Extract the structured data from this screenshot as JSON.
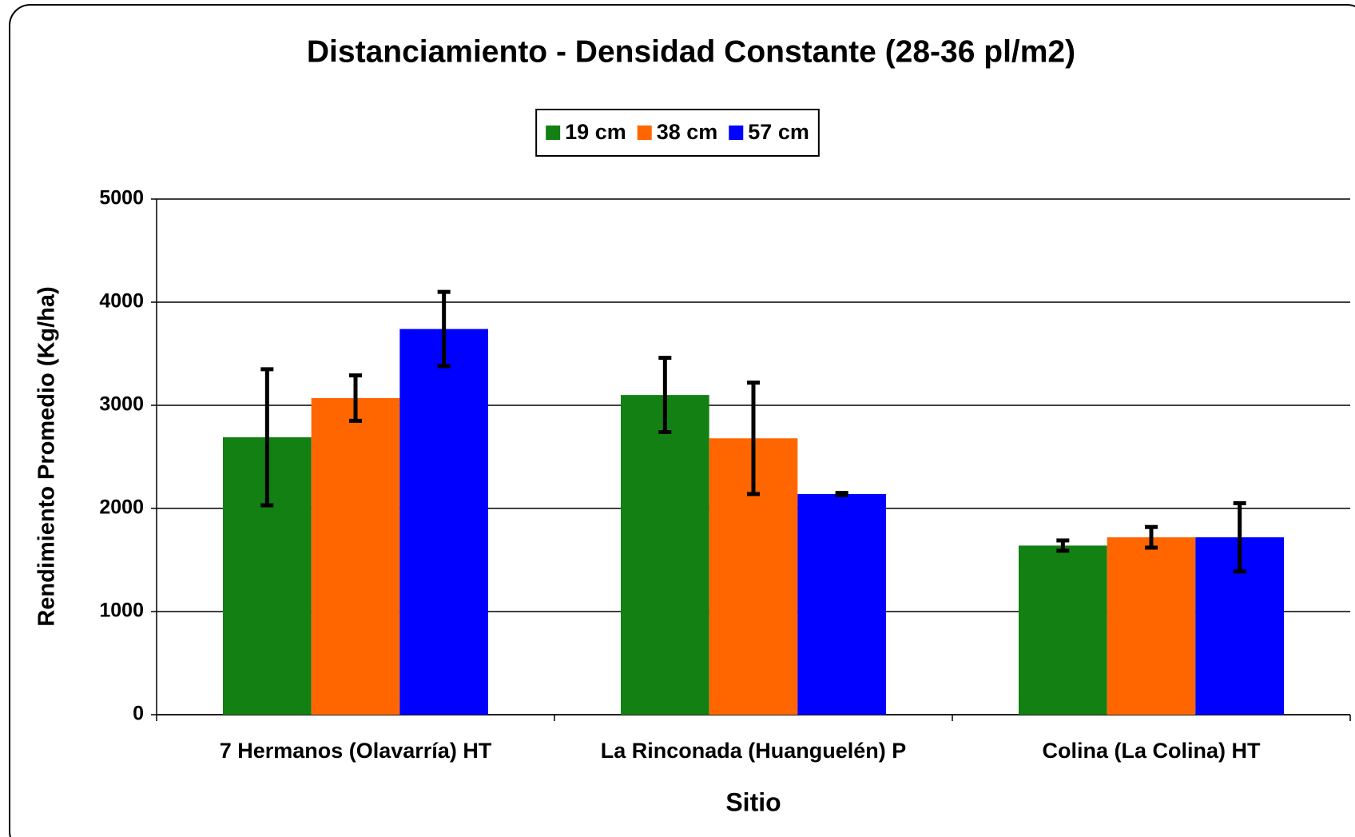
{
  "chart_data": {
    "type": "bar",
    "title": "Distanciamiento - Densidad Constante (28-36 pl/m2)",
    "x_label": "Sitio",
    "y_label": "Rendimiento Promedio (Kg/ha)",
    "categories": [
      "7 Hermanos (Olavarría) HT",
      "La Rinconada (Huanguelén) P",
      "Colina (La Colina) HT"
    ],
    "series": [
      {
        "name": "19 cm",
        "color": "#138013",
        "values": [
          2690,
          3100,
          1640
        ],
        "errors": [
          660,
          360,
          50
        ]
      },
      {
        "name": "38 cm",
        "color": "#ff6600",
        "values": [
          3070,
          2680,
          1720
        ],
        "errors": [
          220,
          540,
          100
        ]
      },
      {
        "name": "57 cm",
        "color": "#0000ff",
        "values": [
          3740,
          2140,
          1720
        ],
        "errors": [
          360,
          10,
          330
        ]
      }
    ],
    "ylim": [
      0,
      5000
    ],
    "yticks": [
      0,
      1000,
      2000,
      3000,
      4000,
      5000
    ],
    "grid": true,
    "legend": "top"
  }
}
